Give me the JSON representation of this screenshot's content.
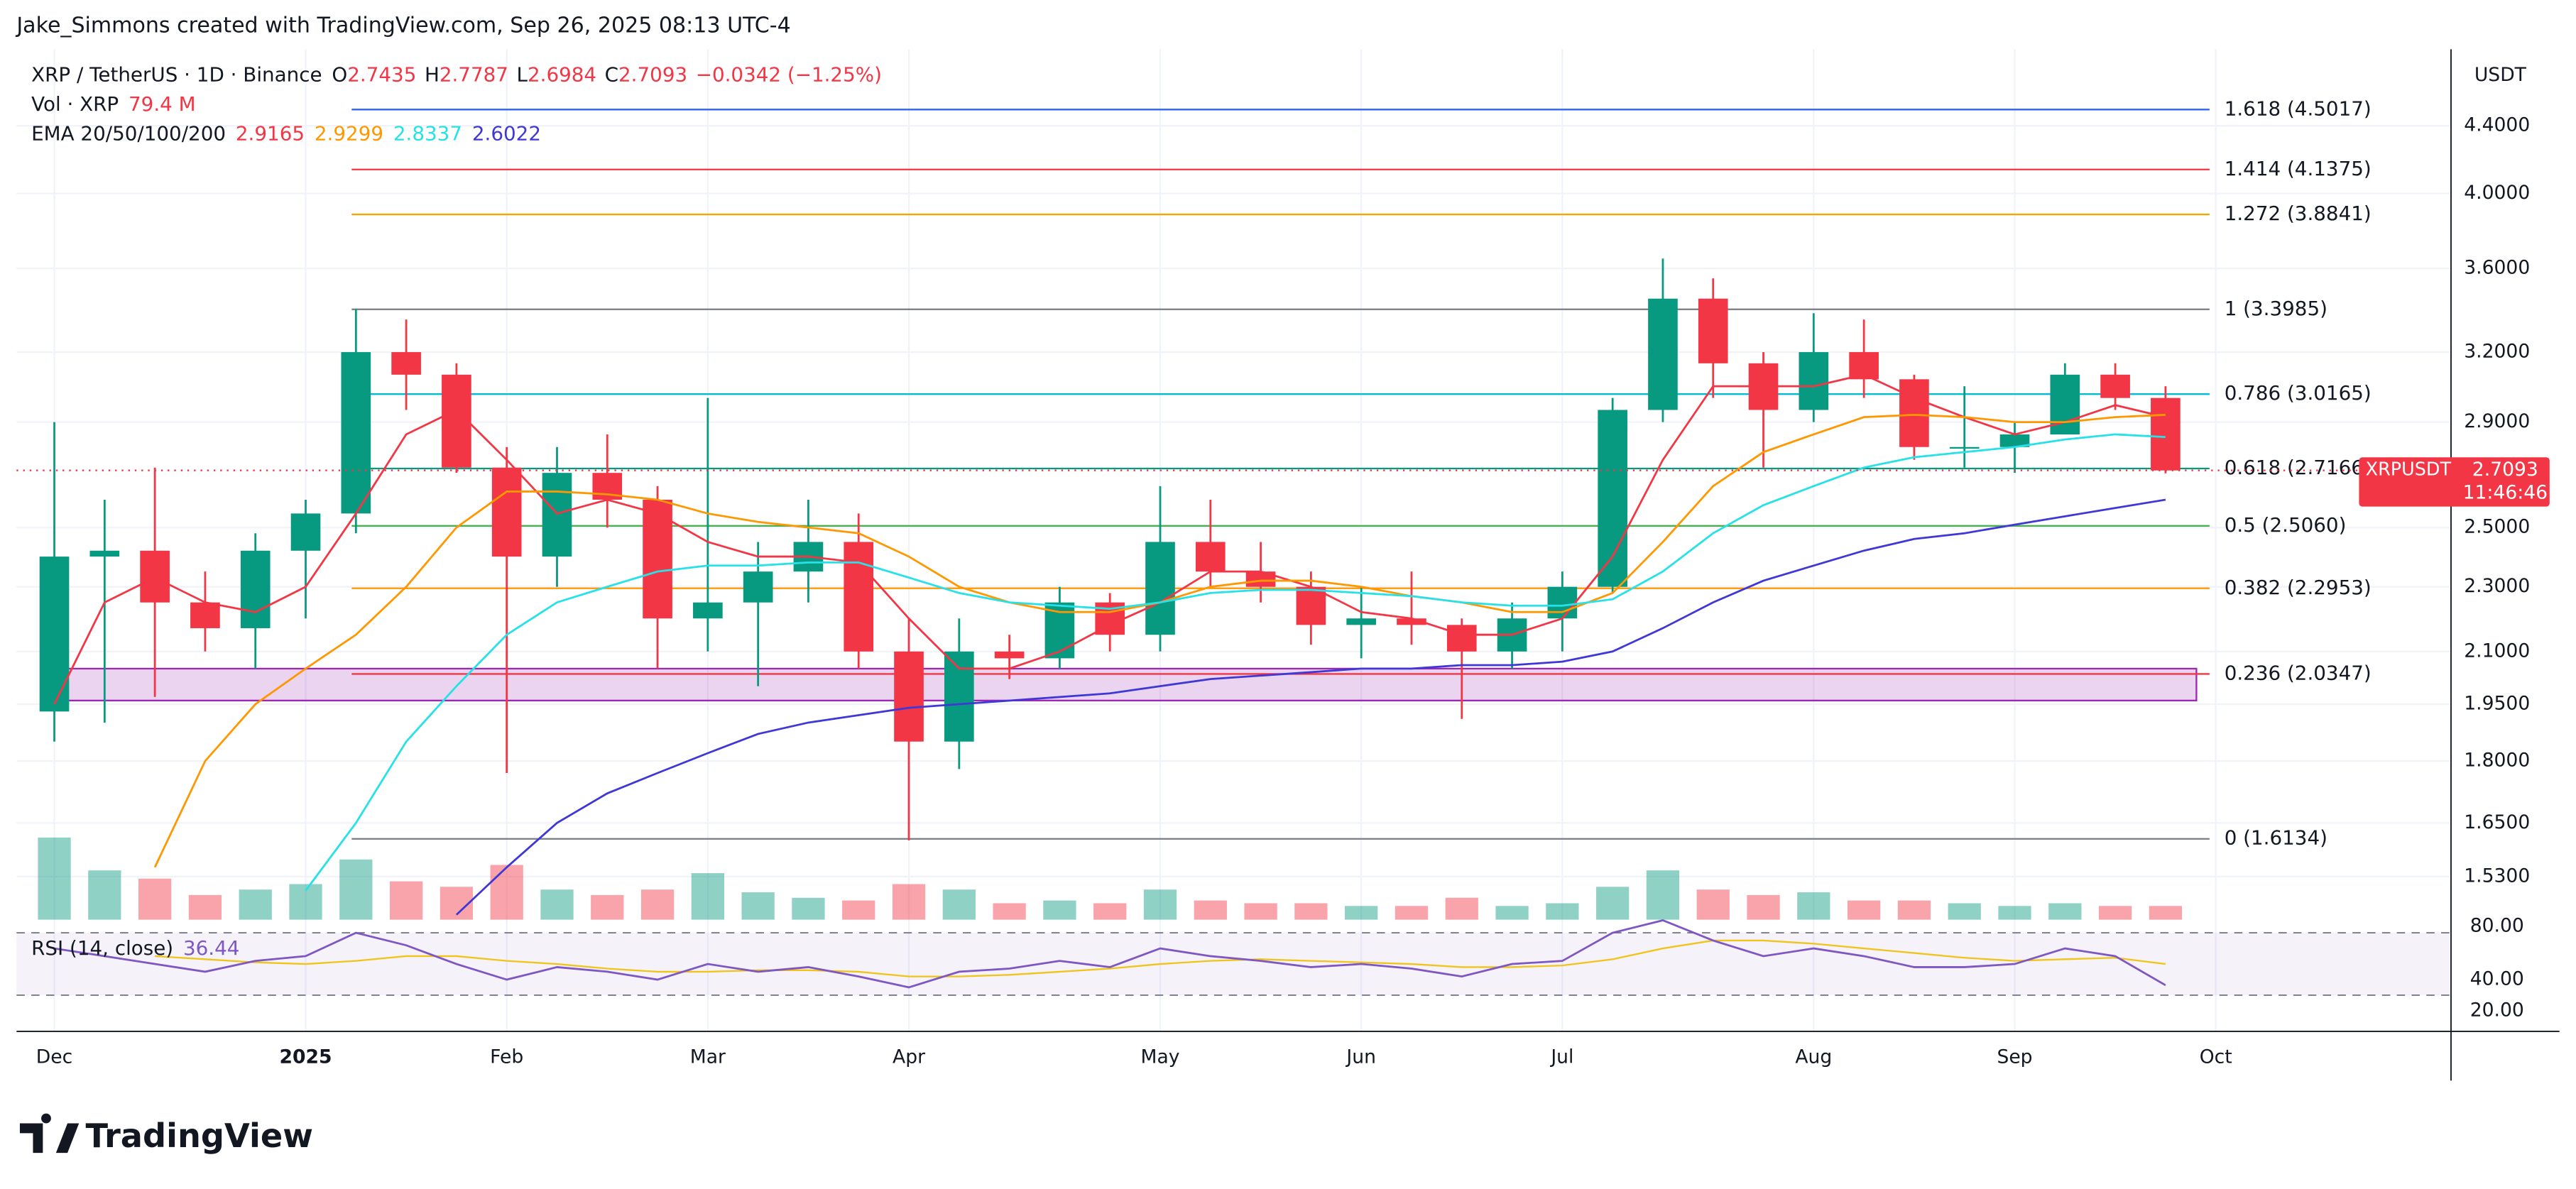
{
  "header": {
    "credit": "Jake_Simmons created with TradingView.com, Sep 26, 2025 08:13 UTC-4",
    "logo": "TradingView"
  },
  "chart_data": {
    "type": "candlestick",
    "symbol": "XRP / TetherUS · 1D · Binance",
    "ohlc_labels": [
      "O",
      "H",
      "L",
      "C"
    ],
    "ohlc": [
      2.7435,
      2.7787,
      2.6984,
      2.7093
    ],
    "change": "−0.0342 (−1.25%)",
    "volume_title": "Vol · XRP",
    "volume_value": "79.4 M",
    "ema_title": "EMA 20/50/100/200",
    "currency": "USDT",
    "price_tag": {
      "symbol": "XRPUSDT",
      "value": 2.7093,
      "countdown": "11:46:46"
    },
    "categories": [
      "Dec",
      null,
      null,
      null,
      null,
      "2025",
      null,
      null,
      null,
      "Feb",
      null,
      null,
      null,
      "Mar",
      null,
      null,
      null,
      "Apr",
      null,
      null,
      null,
      null,
      "May",
      null,
      null,
      null,
      "Jun",
      null,
      null,
      null,
      "Jul",
      null,
      null,
      null,
      null,
      "Aug",
      null,
      null,
      null,
      "Sep",
      null,
      null,
      null,
      "Oct"
    ],
    "open": [
      1.93,
      2.4,
      2.42,
      2.25,
      2.17,
      2.42,
      2.55,
      3.2,
      3.1,
      2.72,
      2.4,
      2.7,
      2.6,
      2.2,
      2.25,
      2.35,
      2.45,
      2.1,
      1.85,
      2.1,
      2.08,
      2.25,
      2.15,
      2.45,
      2.35,
      2.3,
      2.18,
      2.2,
      2.18,
      2.1,
      2.2,
      2.3,
      2.95,
      3.45,
      3.15,
      2.95,
      3.2,
      3.08,
      2.8,
      2.8,
      2.85,
      3.1,
      3.0,
      null
    ],
    "high": [
      2.9,
      2.6,
      2.72,
      2.35,
      2.48,
      2.6,
      3.4,
      3.35,
      3.15,
      2.8,
      2.8,
      2.85,
      2.65,
      3.0,
      2.45,
      2.6,
      2.55,
      2.2,
      2.2,
      2.15,
      2.3,
      2.28,
      2.65,
      2.6,
      2.45,
      2.35,
      2.3,
      2.35,
      2.2,
      2.25,
      2.35,
      3.0,
      3.65,
      3.55,
      3.2,
      3.38,
      3.35,
      3.1,
      3.05,
      2.9,
      3.15,
      3.15,
      3.05,
      null
    ],
    "low": [
      1.85,
      1.9,
      1.97,
      2.1,
      2.05,
      2.2,
      2.48,
      2.95,
      2.7,
      1.77,
      2.3,
      2.5,
      2.05,
      2.1,
      2.0,
      2.25,
      2.05,
      1.61,
      1.78,
      2.02,
      2.05,
      2.1,
      2.1,
      2.3,
      2.25,
      2.12,
      2.08,
      2.12,
      1.91,
      2.05,
      2.1,
      2.28,
      2.9,
      3.0,
      2.72,
      2.9,
      3.0,
      2.75,
      2.72,
      2.7,
      2.85,
      2.95,
      2.6984,
      null
    ],
    "close": [
      2.4,
      2.42,
      2.25,
      2.17,
      2.42,
      2.55,
      3.2,
      3.1,
      2.72,
      2.4,
      2.7,
      2.6,
      2.2,
      2.25,
      2.35,
      2.45,
      2.1,
      1.85,
      2.1,
      2.08,
      2.25,
      2.15,
      2.45,
      2.35,
      2.3,
      2.18,
      2.2,
      2.18,
      2.1,
      2.2,
      2.3,
      2.95,
      3.45,
      3.15,
      2.95,
      3.2,
      3.08,
      2.8,
      2.8,
      2.85,
      3.1,
      3.0,
      2.7093,
      null
    ],
    "up_color": "#089981",
    "down_color": "#f23645",
    "volume": [
      3000,
      1800,
      1500,
      900,
      1100,
      1300,
      2200,
      1400,
      1200,
      2000,
      1100,
      900,
      1100,
      1700,
      1000,
      800,
      700,
      1300,
      1100,
      600,
      700,
      600,
      1100,
      700,
      600,
      600,
      500,
      500,
      800,
      500,
      600,
      1200,
      1800,
      1100,
      900,
      1000,
      700,
      700,
      600,
      500,
      600,
      500,
      500,
      null
    ],
    "emas": [
      {
        "color": "#f23645",
        "last": 2.9165,
        "values": [
          1.95,
          2.25,
          2.33,
          2.25,
          2.22,
          2.3,
          2.55,
          2.85,
          2.95,
          2.75,
          2.55,
          2.6,
          2.55,
          2.45,
          2.4,
          2.4,
          2.38,
          2.2,
          2.05,
          2.05,
          2.1,
          2.18,
          2.25,
          2.35,
          2.35,
          2.3,
          2.22,
          2.2,
          2.15,
          2.15,
          2.2,
          2.4,
          2.75,
          3.05,
          3.05,
          3.05,
          3.1,
          3.0,
          2.92,
          2.85,
          2.9,
          2.97,
          2.92,
          null
        ]
      },
      {
        "color": "#ff9800",
        "last": 2.9299,
        "values": [
          null,
          null,
          1.55,
          1.8,
          1.95,
          2.05,
          2.15,
          2.3,
          2.5,
          2.63,
          2.63,
          2.62,
          2.6,
          2.55,
          2.52,
          2.5,
          2.48,
          2.4,
          2.3,
          2.25,
          2.22,
          2.22,
          2.25,
          2.3,
          2.32,
          2.32,
          2.3,
          2.27,
          2.25,
          2.22,
          2.22,
          2.28,
          2.45,
          2.65,
          2.78,
          2.85,
          2.92,
          2.93,
          2.92,
          2.9,
          2.9,
          2.92,
          2.93,
          null
        ]
      },
      {
        "color": "#26e2e8",
        "last": 2.8337,
        "values": [
          null,
          null,
          null,
          null,
          null,
          1.5,
          1.65,
          1.85,
          2.0,
          2.15,
          2.25,
          2.3,
          2.35,
          2.37,
          2.37,
          2.38,
          2.38,
          2.33,
          2.28,
          2.25,
          2.24,
          2.23,
          2.25,
          2.28,
          2.29,
          2.29,
          2.28,
          2.27,
          2.25,
          2.24,
          2.24,
          2.26,
          2.35,
          2.48,
          2.58,
          2.65,
          2.72,
          2.76,
          2.78,
          2.8,
          2.83,
          2.85,
          2.84,
          null
        ]
      },
      {
        "color": "#3f37d6",
        "last": 2.6022,
        "values": [
          null,
          null,
          null,
          null,
          null,
          null,
          null,
          null,
          1.45,
          1.55,
          1.65,
          1.72,
          1.77,
          1.82,
          1.87,
          1.9,
          1.92,
          1.94,
          1.95,
          1.96,
          1.97,
          1.98,
          2.0,
          2.02,
          2.03,
          2.04,
          2.05,
          2.05,
          2.06,
          2.06,
          2.07,
          2.1,
          2.17,
          2.25,
          2.32,
          2.37,
          2.42,
          2.46,
          2.48,
          2.51,
          2.54,
          2.57,
          2.6,
          null
        ]
      }
    ],
    "ylim": [
      1.44,
      4.9
    ],
    "log_scale": true,
    "grid": true,
    "yticks": [
      {
        "value": 4.4,
        "label": "4.4000"
      },
      {
        "value": 4.0,
        "label": "4.0000"
      },
      {
        "value": 3.6,
        "label": "3.6000"
      },
      {
        "value": 3.2,
        "label": "3.2000"
      },
      {
        "value": 2.9,
        "label": "2.9000"
      },
      {
        "value": 2.5,
        "label": "2.5000"
      },
      {
        "value": 2.3,
        "label": "2.3000"
      },
      {
        "value": 2.1,
        "label": "2.1000"
      },
      {
        "value": 1.95,
        "label": "1.9500"
      },
      {
        "value": 1.8,
        "label": "1.8000"
      },
      {
        "value": 1.65,
        "label": "1.6500"
      },
      {
        "value": 1.53,
        "label": "1.5300"
      }
    ],
    "fibonacci": [
      {
        "label": "1.618 (4.5017)",
        "value": 4.5017,
        "color": "#2962ff"
      },
      {
        "label": "1.414 (4.1375)",
        "value": 4.1375,
        "color": "#f23645"
      },
      {
        "label": "1.272 (3.8841)",
        "value": 3.8841,
        "color": "#f0a800"
      },
      {
        "label": "1 (3.3985)",
        "value": 3.3985,
        "color": "#787b86"
      },
      {
        "label": "0.786 (3.0165)",
        "value": 3.0165,
        "color": "#00bcd4"
      },
      {
        "label": "0.618 (2.7166)",
        "value": 2.7166,
        "color": "#089981"
      },
      {
        "label": "0.5 (2.5060)",
        "value": 2.506,
        "color": "#4caf50"
      },
      {
        "label": "0.382 (2.2953)",
        "value": 2.2953,
        "color": "#ff9800"
      },
      {
        "label": "0.236 (2.0347)",
        "value": 2.0347,
        "color": "#f23645"
      },
      {
        "label": "0 (1.6134)",
        "value": 1.6134,
        "color": "#787b86"
      }
    ],
    "zone": {
      "low": 1.96,
      "high": 2.05,
      "color": "#9c27b0"
    },
    "rsi": {
      "title": "RSI (14, close)",
      "last": 36.44,
      "color": "#7e57c2",
      "ma_color": "#f0c419",
      "values": [
        60,
        55,
        50,
        45,
        52,
        55,
        70,
        62,
        50,
        40,
        48,
        45,
        40,
        50,
        45,
        48,
        42,
        35,
        45,
        47,
        52,
        48,
        60,
        55,
        52,
        48,
        50,
        47,
        42,
        50,
        52,
        70,
        78,
        65,
        55,
        60,
        55,
        48,
        48,
        50,
        60,
        55,
        36.44,
        null
      ],
      "ma": [
        null,
        null,
        55,
        53,
        51,
        50,
        52,
        55,
        55,
        52,
        50,
        47,
        45,
        45,
        46,
        46,
        45,
        42,
        42,
        43,
        45,
        47,
        50,
        52,
        53,
        52,
        51,
        50,
        48,
        48,
        49,
        53,
        60,
        65,
        65,
        63,
        60,
        57,
        54,
        52,
        53,
        54,
        50,
        null
      ],
      "ylim": [
        6.8,
        78.4
      ],
      "yticks": [
        {
          "value": 80,
          "label": "80.00"
        },
        {
          "value": 40,
          "label": "40.00"
        },
        {
          "value": 20,
          "label": "20.00"
        }
      ],
      "bands": [
        30,
        70
      ]
    }
  }
}
